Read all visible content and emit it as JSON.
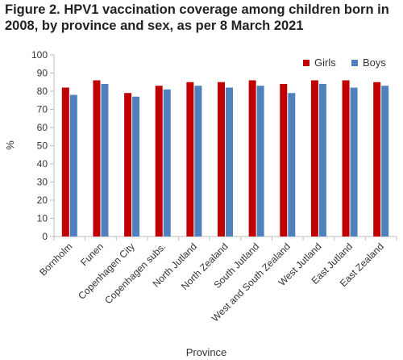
{
  "chart_data": {
    "type": "bar",
    "title": "Figure 2. HPV1 vaccination coverage among children born in 2008, by province and sex,  as per 8 March 2021",
    "xlabel": "Province",
    "ylabel": "%",
    "ylim": [
      0,
      100
    ],
    "yticks": [
      "0",
      "10",
      "20",
      "30",
      "40",
      "50",
      "60",
      "70",
      "80",
      "90",
      "100"
    ],
    "grid": false,
    "legend_position": "top-right",
    "categories": [
      "Bornholm",
      "Funen",
      "Copenhagen City",
      "Copenhagen subs.",
      "North Jutland",
      "North Zealand",
      "South Jutland",
      "West and South Zealand",
      "West Jutland",
      "East Jutland",
      "East Zealand"
    ],
    "series": [
      {
        "name": "Girls",
        "color": "#c00000",
        "values": [
          82,
          86,
          79,
          83,
          85,
          85,
          86,
          84,
          86,
          86,
          85
        ]
      },
      {
        "name": "Boys",
        "color": "#4f81bd",
        "values": [
          78,
          84,
          77,
          81,
          83,
          82,
          83,
          79,
          84,
          82,
          83
        ]
      }
    ]
  }
}
